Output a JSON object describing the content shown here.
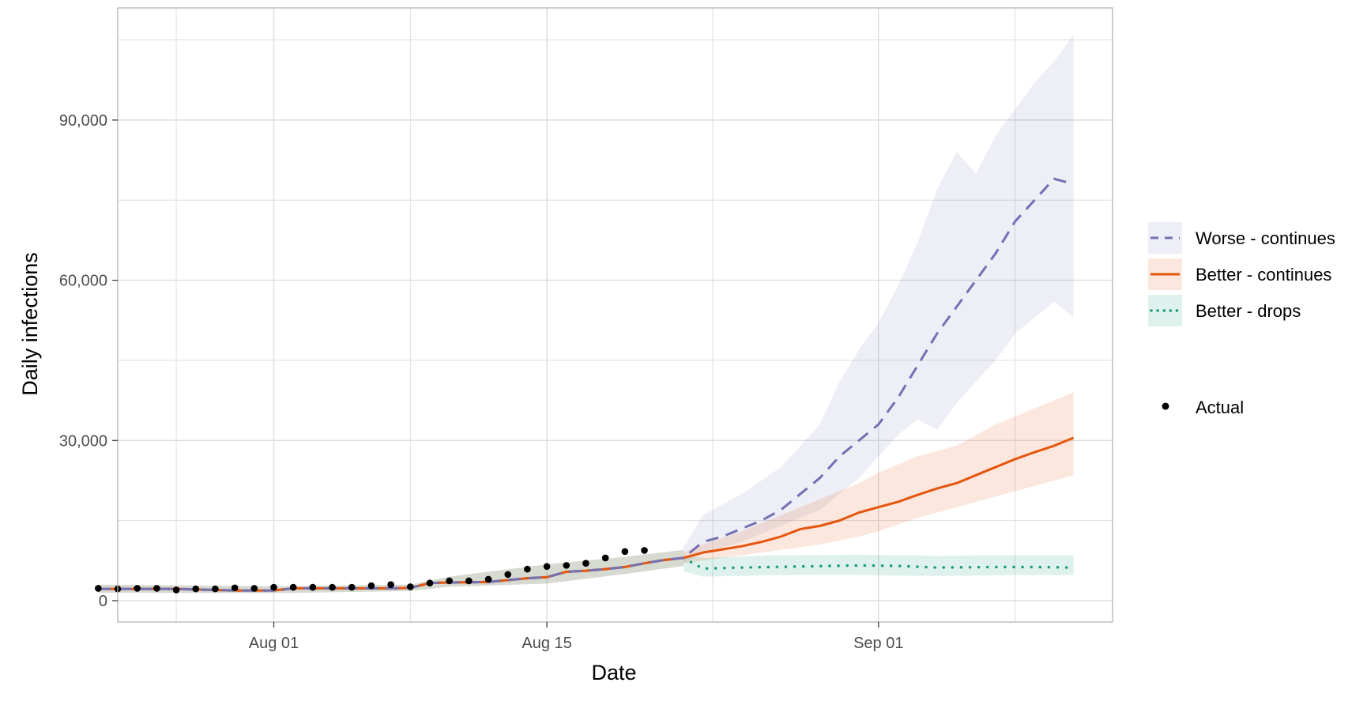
{
  "chart_data": {
    "type": "line",
    "title": "",
    "xlabel": "Date",
    "ylabel": "Daily infections",
    "x_ticks": [
      "Aug 01",
      "Aug 15",
      "Sep 01"
    ],
    "x_tick_dates": [
      "2020-08-01",
      "2020-08-15",
      "2020-09-01"
    ],
    "xlim": [
      "2020-07-24",
      "2020-09-13"
    ],
    "y_ticks": [
      "0",
      "30,000",
      "60,000",
      "90,000"
    ],
    "y_tick_values": [
      0,
      30000,
      60000,
      90000
    ],
    "ylim": [
      -4000,
      111000
    ],
    "grid": true,
    "legend_position": "right",
    "colors": {
      "worse": "#7570b3",
      "better": "#e6550d",
      "drops": "#1b9e77",
      "actual": "#000000",
      "grid": "#dedede",
      "panel_border": "#b3b3b3"
    },
    "series": [
      {
        "name": "Worse - continues",
        "style": "dashed",
        "color": "#7570b3",
        "points": [
          [
            "2020-07-23",
            2200
          ],
          [
            "2020-07-25",
            2200
          ],
          [
            "2020-07-27",
            2200
          ],
          [
            "2020-07-30",
            1900
          ],
          [
            "2020-08-01",
            1900
          ],
          [
            "2020-08-02",
            2300
          ],
          [
            "2020-08-04",
            2300
          ],
          [
            "2020-08-06",
            2300
          ],
          [
            "2020-08-07",
            2300
          ],
          [
            "2020-08-08",
            2400
          ],
          [
            "2020-08-09",
            3300
          ],
          [
            "2020-08-10",
            3400
          ],
          [
            "2020-08-12",
            3500
          ],
          [
            "2020-08-14",
            4200
          ],
          [
            "2020-08-15",
            4400
          ],
          [
            "2020-08-16",
            5400
          ],
          [
            "2020-08-17",
            5600
          ],
          [
            "2020-08-18",
            5900
          ],
          [
            "2020-08-19",
            6300
          ],
          [
            "2020-08-20",
            7000
          ],
          [
            "2020-08-21",
            7600
          ],
          [
            "2020-08-22",
            8000
          ],
          [
            "2020-08-23",
            11000
          ],
          [
            "2020-08-24",
            12000
          ],
          [
            "2020-08-25",
            13500
          ],
          [
            "2020-08-26",
            15000
          ],
          [
            "2020-08-27",
            17000
          ],
          [
            "2020-08-28",
            20000
          ],
          [
            "2020-08-29",
            23000
          ],
          [
            "2020-08-30",
            27000
          ],
          [
            "2020-08-31",
            30000
          ],
          [
            "2020-09-01",
            33000
          ],
          [
            "2020-09-02",
            38000
          ],
          [
            "2020-09-03",
            44000
          ],
          [
            "2020-09-04",
            50000
          ],
          [
            "2020-09-05",
            55000
          ],
          [
            "2020-09-06",
            60000
          ],
          [
            "2020-09-07",
            65000
          ],
          [
            "2020-09-08",
            71000
          ],
          [
            "2020-09-09",
            75000
          ],
          [
            "2020-09-10",
            79000
          ],
          [
            "2020-09-11",
            78000
          ]
        ],
        "band": [
          [
            "2020-08-22",
            7000,
            10000
          ],
          [
            "2020-08-23",
            9000,
            16000
          ],
          [
            "2020-08-25",
            11000,
            20000
          ],
          [
            "2020-08-27",
            14000,
            25000
          ],
          [
            "2020-08-29",
            17000,
            33000
          ],
          [
            "2020-08-30",
            20000,
            41000
          ],
          [
            "2020-08-31",
            23000,
            47000
          ],
          [
            "2020-09-01",
            27000,
            52000
          ],
          [
            "2020-09-02",
            31000,
            59000
          ],
          [
            "2020-09-03",
            34000,
            67000
          ],
          [
            "2020-09-04",
            32000,
            77000
          ],
          [
            "2020-09-05",
            37000,
            84000
          ],
          [
            "2020-09-06",
            41000,
            80000
          ],
          [
            "2020-09-07",
            45000,
            87000
          ],
          [
            "2020-09-08",
            50000,
            92000
          ],
          [
            "2020-09-09",
            53000,
            97000
          ],
          [
            "2020-09-10",
            56000,
            101000
          ],
          [
            "2020-09-11",
            53000,
            106000
          ]
        ]
      },
      {
        "name": "Better - continues",
        "style": "solid",
        "color": "#e6550d",
        "points": [
          [
            "2020-07-23",
            2200
          ],
          [
            "2020-07-25",
            2200
          ],
          [
            "2020-07-27",
            2200
          ],
          [
            "2020-07-30",
            1900
          ],
          [
            "2020-08-01",
            1900
          ],
          [
            "2020-08-02",
            2300
          ],
          [
            "2020-08-04",
            2300
          ],
          [
            "2020-08-06",
            2300
          ],
          [
            "2020-08-07",
            2300
          ],
          [
            "2020-08-08",
            2400
          ],
          [
            "2020-08-09",
            3300
          ],
          [
            "2020-08-10",
            3400
          ],
          [
            "2020-08-12",
            3500
          ],
          [
            "2020-08-14",
            4200
          ],
          [
            "2020-08-15",
            4400
          ],
          [
            "2020-08-16",
            5400
          ],
          [
            "2020-08-17",
            5600
          ],
          [
            "2020-08-18",
            5900
          ],
          [
            "2020-08-19",
            6300
          ],
          [
            "2020-08-20",
            7000
          ],
          [
            "2020-08-21",
            7600
          ],
          [
            "2020-08-22",
            8000
          ],
          [
            "2020-08-23",
            9000
          ],
          [
            "2020-08-24",
            9600
          ],
          [
            "2020-08-25",
            10200
          ],
          [
            "2020-08-26",
            11000
          ],
          [
            "2020-08-27",
            12000
          ],
          [
            "2020-08-28",
            13400
          ],
          [
            "2020-08-29",
            14000
          ],
          [
            "2020-08-30",
            15000
          ],
          [
            "2020-08-31",
            16500
          ],
          [
            "2020-09-01",
            17500
          ],
          [
            "2020-09-02",
            18500
          ],
          [
            "2020-09-03",
            19800
          ],
          [
            "2020-09-04",
            21000
          ],
          [
            "2020-09-05",
            22000
          ],
          [
            "2020-09-06",
            23500
          ],
          [
            "2020-09-07",
            25000
          ],
          [
            "2020-09-08",
            26500
          ],
          [
            "2020-09-09",
            27800
          ],
          [
            "2020-09-10",
            29000
          ],
          [
            "2020-09-11",
            30500
          ]
        ],
        "band": [
          [
            "2020-08-22",
            7000,
            9000
          ],
          [
            "2020-08-23",
            7500,
            10500
          ],
          [
            "2020-08-25",
            8500,
            13000
          ],
          [
            "2020-08-27",
            9500,
            16000
          ],
          [
            "2020-08-29",
            10500,
            19000
          ],
          [
            "2020-08-31",
            12000,
            22000
          ],
          [
            "2020-09-01",
            13000,
            24000
          ],
          [
            "2020-09-03",
            15500,
            27000
          ],
          [
            "2020-09-05",
            17500,
            29000
          ],
          [
            "2020-09-07",
            19500,
            33000
          ],
          [
            "2020-09-09",
            21500,
            36000
          ],
          [
            "2020-09-11",
            23500,
            39000
          ]
        ]
      },
      {
        "name": "Better - drops",
        "style": "dotted",
        "color": "#1b9e77",
        "points": [
          [
            "2020-07-23",
            2200
          ],
          [
            "2020-07-25",
            2200
          ],
          [
            "2020-07-27",
            2200
          ],
          [
            "2020-07-30",
            1900
          ],
          [
            "2020-08-01",
            1900
          ],
          [
            "2020-08-02",
            2300
          ],
          [
            "2020-08-04",
            2300
          ],
          [
            "2020-08-06",
            2300
          ],
          [
            "2020-08-07",
            2300
          ],
          [
            "2020-08-08",
            2400
          ],
          [
            "2020-08-09",
            3300
          ],
          [
            "2020-08-10",
            3400
          ],
          [
            "2020-08-12",
            3500
          ],
          [
            "2020-08-14",
            4200
          ],
          [
            "2020-08-15",
            4400
          ],
          [
            "2020-08-16",
            5400
          ],
          [
            "2020-08-17",
            5600
          ],
          [
            "2020-08-18",
            5900
          ],
          [
            "2020-08-19",
            6300
          ],
          [
            "2020-08-20",
            7000
          ],
          [
            "2020-08-21",
            7600
          ],
          [
            "2020-08-22",
            8000
          ],
          [
            "2020-08-23",
            6000
          ],
          [
            "2020-08-25",
            6200
          ],
          [
            "2020-08-28",
            6400
          ],
          [
            "2020-08-31",
            6600
          ],
          [
            "2020-09-02",
            6500
          ],
          [
            "2020-09-04",
            6200
          ],
          [
            "2020-09-07",
            6300
          ],
          [
            "2020-09-09",
            6300
          ],
          [
            "2020-09-11",
            6200
          ]
        ],
        "band": [
          [
            "2020-08-22",
            5500,
            8500
          ],
          [
            "2020-08-23",
            4500,
            8000
          ],
          [
            "2020-08-27",
            4800,
            8500
          ],
          [
            "2020-08-31",
            4800,
            8600
          ],
          [
            "2020-09-04",
            4600,
            8400
          ],
          [
            "2020-09-08",
            4800,
            8500
          ],
          [
            "2020-09-11",
            4800,
            8500
          ]
        ]
      }
    ],
    "early_band": [
      [
        "2020-07-23",
        1500,
        3000
      ],
      [
        "2020-08-01",
        1400,
        2700
      ],
      [
        "2020-08-08",
        1800,
        3000
      ],
      [
        "2020-08-10",
        2600,
        4500
      ],
      [
        "2020-08-15",
        3200,
        6800
      ],
      [
        "2020-08-19",
        5000,
        8200
      ],
      [
        "2020-08-22",
        6500,
        9500
      ]
    ],
    "actual": {
      "name": "Actual",
      "points": [
        [
          "2020-07-23",
          2300
        ],
        [
          "2020-07-24",
          2200
        ],
        [
          "2020-07-25",
          2300
        ],
        [
          "2020-07-26",
          2300
        ],
        [
          "2020-07-27",
          2000
        ],
        [
          "2020-07-28",
          2200
        ],
        [
          "2020-07-29",
          2200
        ],
        [
          "2020-07-30",
          2400
        ],
        [
          "2020-07-31",
          2300
        ],
        [
          "2020-08-01",
          2500
        ],
        [
          "2020-08-02",
          2500
        ],
        [
          "2020-08-03",
          2500
        ],
        [
          "2020-08-04",
          2500
        ],
        [
          "2020-08-05",
          2500
        ],
        [
          "2020-08-06",
          2800
        ],
        [
          "2020-08-07",
          3000
        ],
        [
          "2020-08-08",
          2600
        ],
        [
          "2020-08-09",
          3300
        ],
        [
          "2020-08-10",
          3700
        ],
        [
          "2020-08-11",
          3700
        ],
        [
          "2020-08-12",
          4000
        ],
        [
          "2020-08-13",
          4900
        ],
        [
          "2020-08-14",
          5900
        ],
        [
          "2020-08-15",
          6400
        ],
        [
          "2020-08-16",
          6600
        ],
        [
          "2020-08-17",
          7000
        ],
        [
          "2020-08-18",
          8000
        ],
        [
          "2020-08-19",
          9200
        ],
        [
          "2020-08-20",
          9400
        ]
      ]
    }
  }
}
